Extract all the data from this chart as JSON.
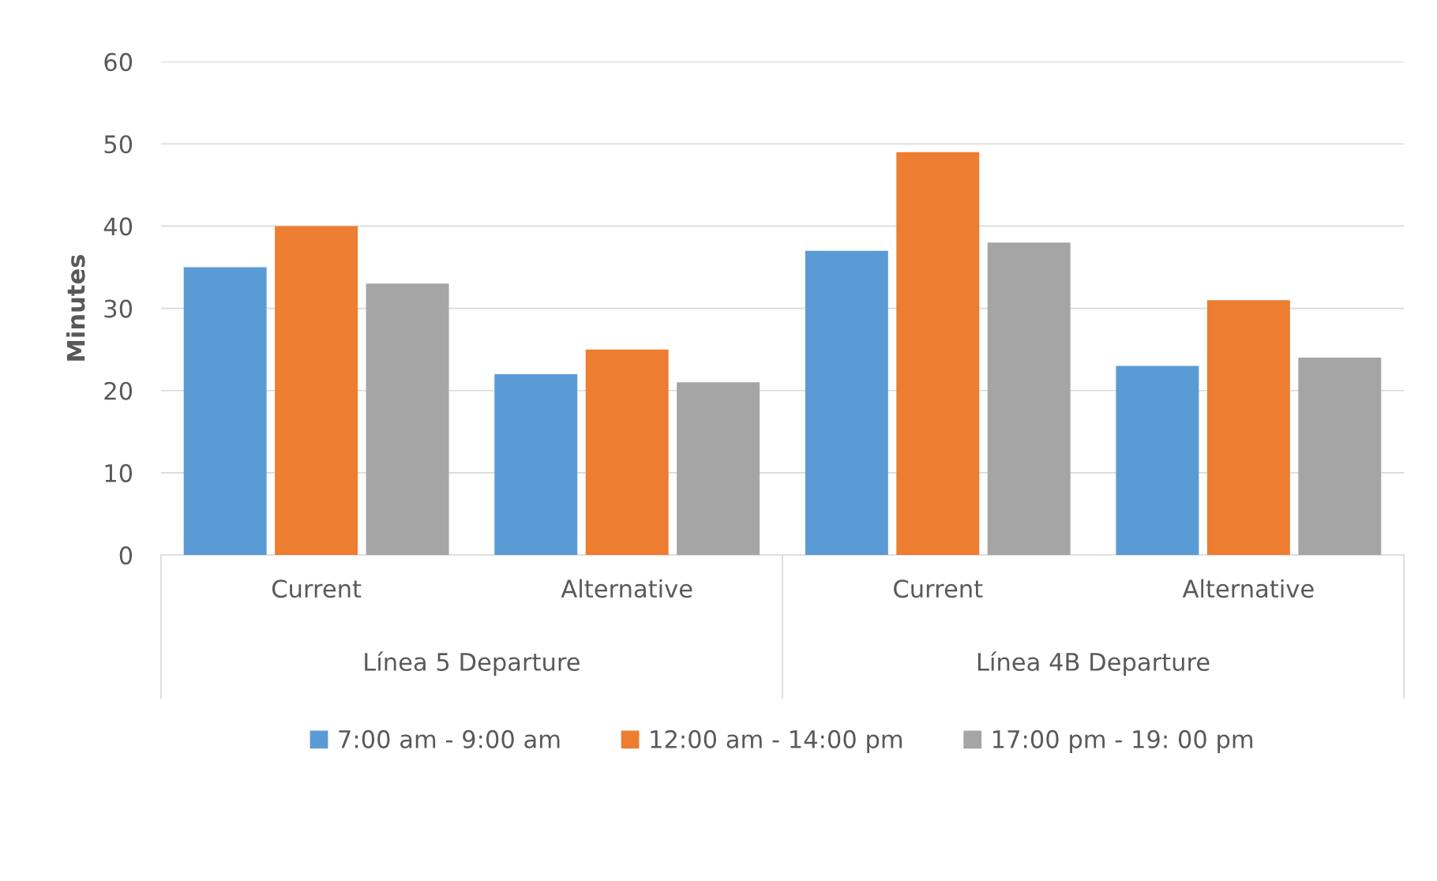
{
  "chart_data": {
    "type": "bar",
    "ylabel": "Minutes",
    "categories": [
      "Current",
      "Alternative",
      "Current",
      "Alternative"
    ],
    "series": [
      {
        "name": "7:00 am - 9:00 am",
        "color": "#5b9bd5",
        "values": [
          35,
          22,
          37,
          23
        ]
      },
      {
        "name": "12:00 am - 14:00 pm",
        "color": "#ed7d31",
        "values": [
          40,
          25,
          49,
          31
        ]
      },
      {
        "name": "17:00 pm - 19: 00 pm",
        "color": "#a5a5a5",
        "values": [
          33,
          21,
          38,
          24
        ]
      }
    ],
    "annotations": [
      "Línea 5 Departure",
      "Línea 4B Departure"
    ],
    "ylim": [
      0,
      60
    ],
    "yticks": [
      0,
      10,
      20,
      30,
      40,
      50,
      60
    ],
    "grid": "y",
    "legend": "bottom"
  }
}
